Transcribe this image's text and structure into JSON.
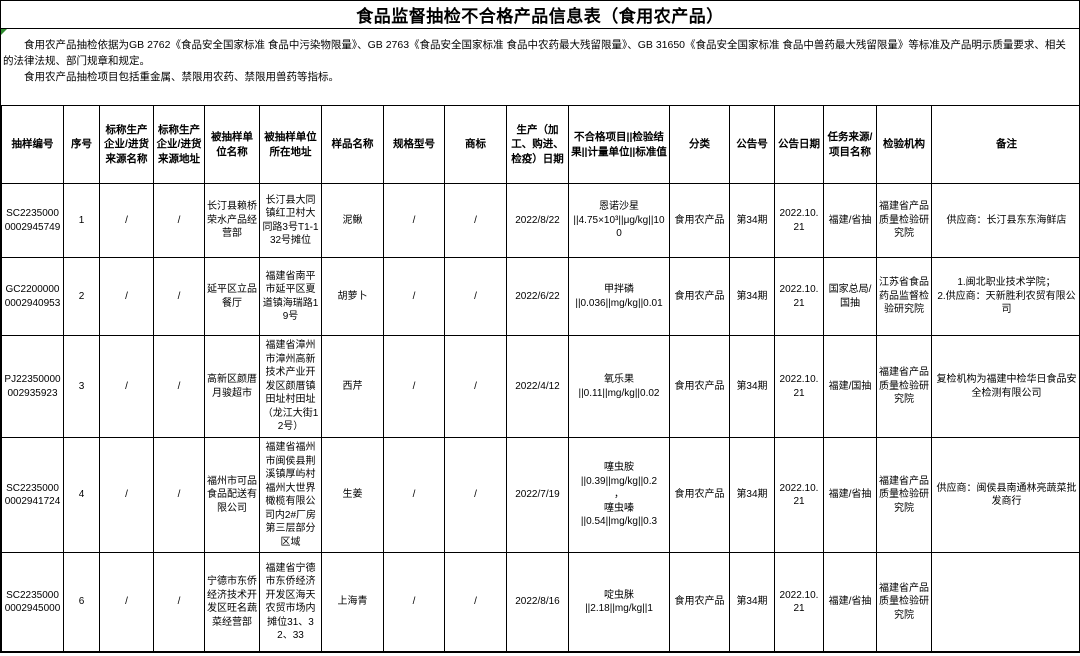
{
  "title": "食品监督抽检不合格产品信息表（食用农产品）",
  "notes": {
    "paragraph1": "食用农产品抽检依据为GB 2762《食品安全国家标准 食品中污染物限量》、GB 2763《食品安全国家标准 食品中农药最大残留限量》、GB 31650《食品安全国家标准 食品中兽药最大残留限量》等标准及产品明示质量要求、相关的法律法规、部门规章和规定。",
    "paragraph2": "食用农产品抽检项目包括重金属、禁限用农药、禁限用兽药等指标。"
  },
  "colors": {
    "background": "#ffffff",
    "text": "#000000",
    "border": "#000000",
    "marker_green": "#2e8b2e"
  },
  "table": {
    "headers": [
      "抽样编号",
      "序号",
      "标称生产企业/进货来源名称",
      "标称生产企业/进货来源地址",
      "被抽样单位名称",
      "被抽样单位所在地址",
      "样品名称",
      "规格型号",
      "商标",
      "生产（加工、购进、检疫）日期",
      "不合格项目||检验结果||计量单位||标准值",
      "分类",
      "公告号",
      "公告日期",
      "任务来源/项目名称",
      "检验机构",
      "备注"
    ],
    "rows": [
      [
        "SC22350000002945749",
        "1",
        "/",
        "/",
        "长汀县赖桥荣水产品经营部",
        "长汀县大同镇红卫村大同路3号T1-132号摊位",
        "泥鳅",
        "/",
        "/",
        "2022/8/22",
        "恩诺沙星\n||4.75×10³||μg/kg||100",
        "食用农产品",
        "第34期",
        "2022.10.21",
        "福建/省抽",
        "福建省产品质量检验研究院",
        "供应商：长汀县东东海鲜店"
      ],
      [
        "GC22000000002940953",
        "2",
        "/",
        "/",
        "延平区立品餐厅",
        "福建省南平市延平区夏道镇海瑞路19号",
        "胡萝卜",
        "/",
        "/",
        "2022/6/22",
        "甲拌磷\n||0.036||mg/kg||0.01",
        "食用农产品",
        "第34期",
        "2022.10.21",
        "国家总局/国抽",
        "江苏省食品药品监督检验研究院",
        "1.闽北职业技术学院；\n2.供应商：天新胜利农贸有限公司"
      ],
      [
        "PJ22350000002935923",
        "3",
        "/",
        "/",
        "高新区颜厝月骏超市",
        "福建省漳州市漳州高新技术产业开发区颜厝镇田址村田址（龙江大街12号）",
        "西芹",
        "/",
        "/",
        "2022/4/12",
        "氧乐果\n||0.11||mg/kg||0.02",
        "食用农产品",
        "第34期",
        "2022.10.21",
        "福建/国抽",
        "福建省产品质量检验研究院",
        "复检机构为福建中检华日食品安全检测有限公司"
      ],
      [
        "SC22350000002941724",
        "4",
        "/",
        "/",
        "福州市可品食品配送有限公司",
        "福建省福州市闽侯县荆溪镇厚屿村福州大世界橄榄有限公司内2#厂房第三层部分区域",
        "生姜",
        "/",
        "/",
        "2022/7/19",
        "噻虫胺\n||0.39||mg/kg||0.2\n，\n噻虫嗪\n||0.54||mg/kg||0.3",
        "食用农产品",
        "第34期",
        "2022.10.21",
        "福建/省抽",
        "福建省产品质量检验研究院",
        "供应商：闽侯县南通林亮蔬菜批发商行"
      ],
      [
        "SC22350000002945000",
        "6",
        "/",
        "/",
        "宁德市东侨经济技术开发区旺名蔬菜经营部",
        "福建省宁德市东侨经济开发区海天农贸市场内摊位31、32、33",
        "上海青",
        "/",
        "/",
        "2022/8/16",
        "啶虫脒\n||2.18||mg/kg||1",
        "食用农产品",
        "第34期",
        "2022.10.21",
        "福建/省抽",
        "福建省产品质量检验研究院",
        ""
      ]
    ]
  }
}
